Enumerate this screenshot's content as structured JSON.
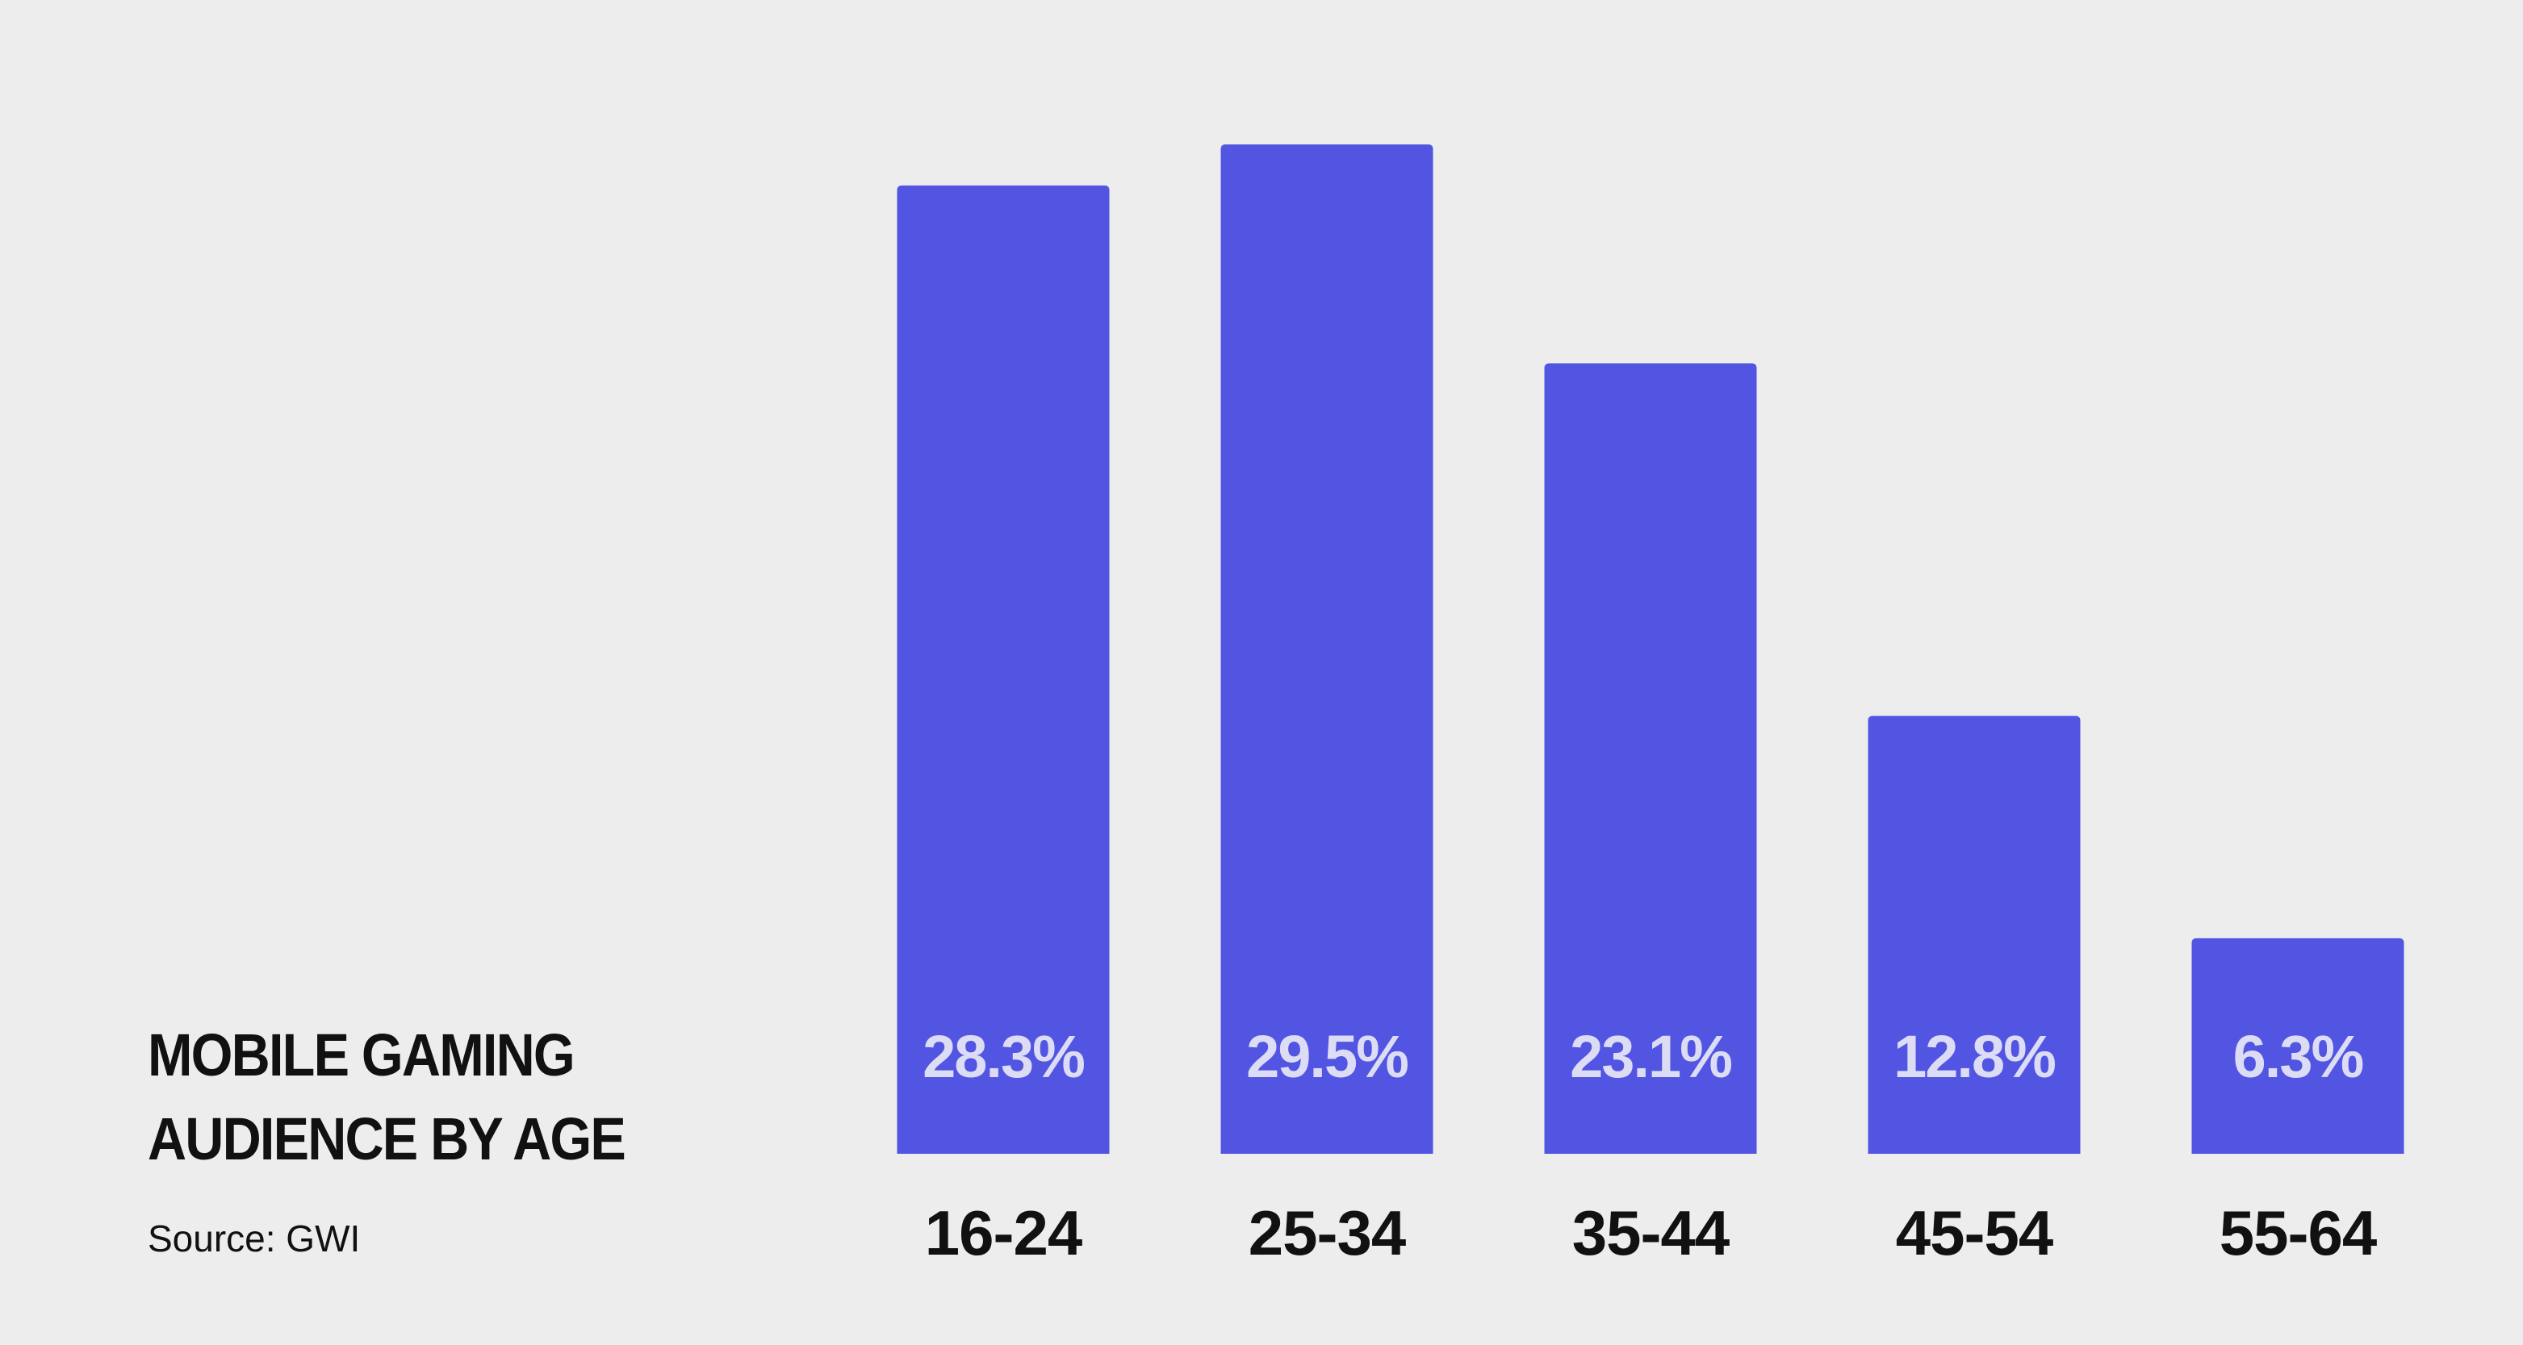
{
  "colors": {
    "background": "#eeeded",
    "bar": "#5155e2",
    "bar_label": "#dcdcf4",
    "text": "#111111"
  },
  "title": {
    "line1": "MOBILE GAMING",
    "line2": "AUDIENCE BY AGE"
  },
  "source": "Source: GWI",
  "chart_data": {
    "type": "bar",
    "title": "MOBILE GAMING AUDIENCE BY AGE",
    "categories": [
      "16-24",
      "25-34",
      "35-44",
      "45-54",
      "55-64"
    ],
    "values": [
      28.3,
      29.5,
      23.1,
      12.8,
      6.3
    ],
    "value_labels": [
      "28.3%",
      "29.5%",
      "23.1%",
      "12.8%",
      "6.3%"
    ],
    "unit": "%",
    "ylim": [
      0,
      29.5
    ],
    "grid": false,
    "legend": "none"
  }
}
